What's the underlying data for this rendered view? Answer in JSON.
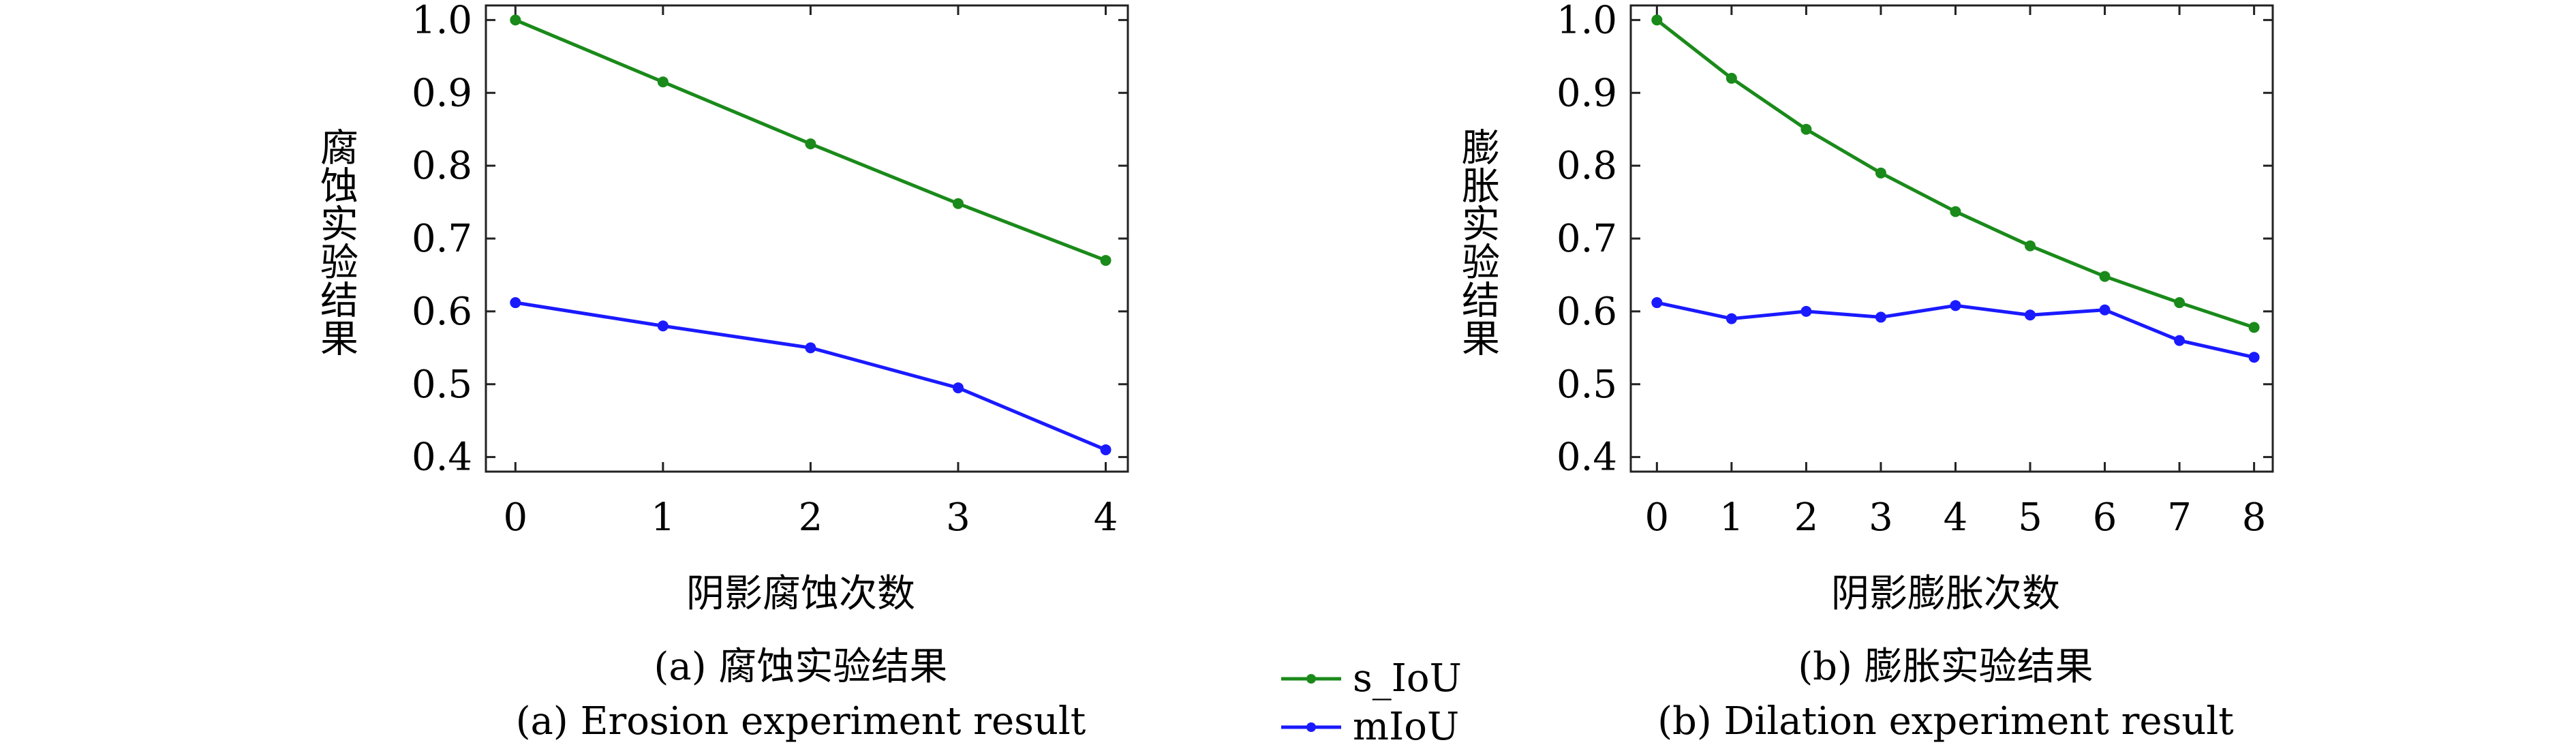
{
  "colors": {
    "s_IoU": "#1a8a1a",
    "mIoU": "#1a1aff"
  },
  "legend": {
    "items": [
      {
        "label": "s_IoU",
        "color": "#1a8a1a"
      },
      {
        "label": "mIoU",
        "color": "#1a1aff"
      }
    ]
  },
  "chart_data": [
    {
      "type": "line",
      "ylabel": "腐蚀实验结果",
      "xlabel": "阴影腐蚀次数",
      "caption_cn": "(a) 腐蚀实验结果",
      "caption_en": "(a) Erosion experiment result",
      "x": [
        0,
        1,
        2,
        3,
        4
      ],
      "xlim": [
        -0.2,
        4.15
      ],
      "ylim": [
        0.38,
        1.02
      ],
      "yticks": [
        0.4,
        0.5,
        0.6,
        0.7,
        0.8,
        0.9,
        1.0
      ],
      "ytick_labels": [
        "0.4",
        "0.5",
        "0.6",
        "0.7",
        "0.8",
        "0.9",
        "1.0"
      ],
      "grid": false,
      "series": [
        {
          "name": "s_IoU",
          "values": [
            1.0,
            0.915,
            0.83,
            0.748,
            0.67
          ]
        },
        {
          "name": "mIoU",
          "values": [
            0.612,
            0.58,
            0.55,
            0.495,
            0.41
          ]
        }
      ]
    },
    {
      "type": "line",
      "ylabel": "膨胀实验结果",
      "xlabel": "阴影膨胀次数",
      "caption_cn": "(b) 膨胀实验结果",
      "caption_en": "(b) Dilation experiment result",
      "x": [
        0,
        1,
        2,
        3,
        4,
        5,
        6,
        7,
        8
      ],
      "xlim": [
        -0.35,
        8.25
      ],
      "ylim": [
        0.38,
        1.02
      ],
      "yticks": [
        0.4,
        0.5,
        0.6,
        0.7,
        0.8,
        0.9,
        1.0
      ],
      "ytick_labels": [
        "0.4",
        "0.5",
        "0.6",
        "0.7",
        "0.8",
        "0.9",
        "1.0"
      ],
      "grid": false,
      "series": [
        {
          "name": "s_IoU",
          "values": [
            1.0,
            0.92,
            0.85,
            0.79,
            0.737,
            0.69,
            0.648,
            0.612,
            0.578
          ]
        },
        {
          "name": "mIoU",
          "values": [
            0.612,
            0.59,
            0.6,
            0.592,
            0.608,
            0.595,
            0.602,
            0.56,
            0.537
          ]
        }
      ]
    }
  ]
}
